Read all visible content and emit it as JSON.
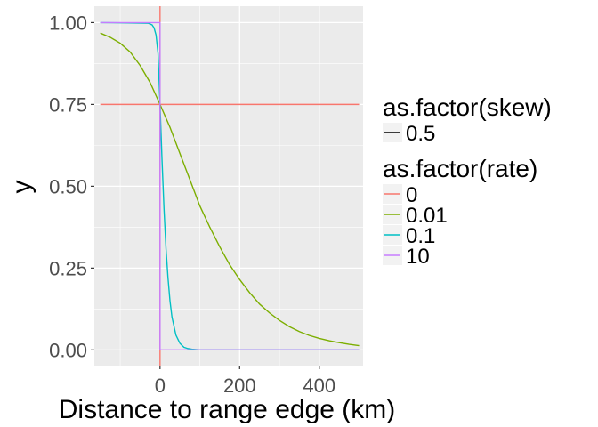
{
  "chart_data": {
    "type": "line",
    "title": "",
    "xlabel": "Distance to range edge (km)",
    "ylabel": "y",
    "xlim": [
      -165,
      510
    ],
    "ylim": [
      -0.048,
      1.05
    ],
    "x_ticks": [
      0,
      200,
      400
    ],
    "x_tick_labels": [
      "0",
      "200",
      "400"
    ],
    "y_ticks": [
      0,
      0.25,
      0.5,
      0.75,
      1.0
    ],
    "y_tick_labels": [
      "0.00",
      "0.25",
      "0.50",
      "0.75",
      "1.00"
    ],
    "grid": true,
    "legend_position": "right",
    "panel_background": "#ebebeb",
    "vertical_line": {
      "x": 0,
      "color": "#f8766d"
    },
    "legends": [
      {
        "title": "as.factor(skew)",
        "entries": [
          {
            "label": "0.5",
            "color": "#000000"
          }
        ]
      },
      {
        "title": "as.factor(rate)",
        "entries": [
          {
            "label": "0",
            "color": "#f8766d"
          },
          {
            "label": "0.01",
            "color": "#7cae00"
          },
          {
            "label": "0.1",
            "color": "#00bfc4"
          },
          {
            "label": "10",
            "color": "#c77cff"
          }
        ]
      }
    ],
    "series": [
      {
        "name": "0",
        "color": "#f8766d",
        "x": [
          -150,
          500
        ],
        "y": [
          0.75,
          0.75
        ]
      },
      {
        "name": "0.01",
        "color": "#7cae00",
        "x": [
          -150,
          -125,
          -100,
          -75,
          -50,
          -25,
          0,
          25,
          50,
          75,
          100,
          125,
          150,
          175,
          200,
          225,
          250,
          275,
          300,
          325,
          350,
          375,
          400,
          425,
          450,
          475,
          500
        ],
        "y": [
          0.968,
          0.955,
          0.937,
          0.91,
          0.869,
          0.817,
          0.75,
          0.68,
          0.6,
          0.52,
          0.44,
          0.375,
          0.315,
          0.26,
          0.215,
          0.175,
          0.14,
          0.113,
          0.09,
          0.071,
          0.056,
          0.044,
          0.035,
          0.028,
          0.022,
          0.017,
          0.013
        ]
      },
      {
        "name": "0.1",
        "color": "#00bfc4",
        "x": [
          -150,
          -30,
          -20,
          -15,
          -10,
          -5,
          0,
          5,
          10,
          15,
          20,
          25,
          30,
          40,
          50,
          60,
          70,
          80,
          100,
          500
        ],
        "y": [
          1.0,
          0.998,
          0.993,
          0.984,
          0.962,
          0.905,
          0.75,
          0.58,
          0.43,
          0.31,
          0.22,
          0.15,
          0.1,
          0.045,
          0.02,
          0.008,
          0.004,
          0.002,
          0.0,
          0.0
        ]
      },
      {
        "name": "10",
        "color": "#c77cff",
        "x": [
          -150,
          0,
          0,
          500
        ],
        "y": [
          1.0,
          1.0,
          0.0,
          0.0
        ]
      }
    ]
  }
}
